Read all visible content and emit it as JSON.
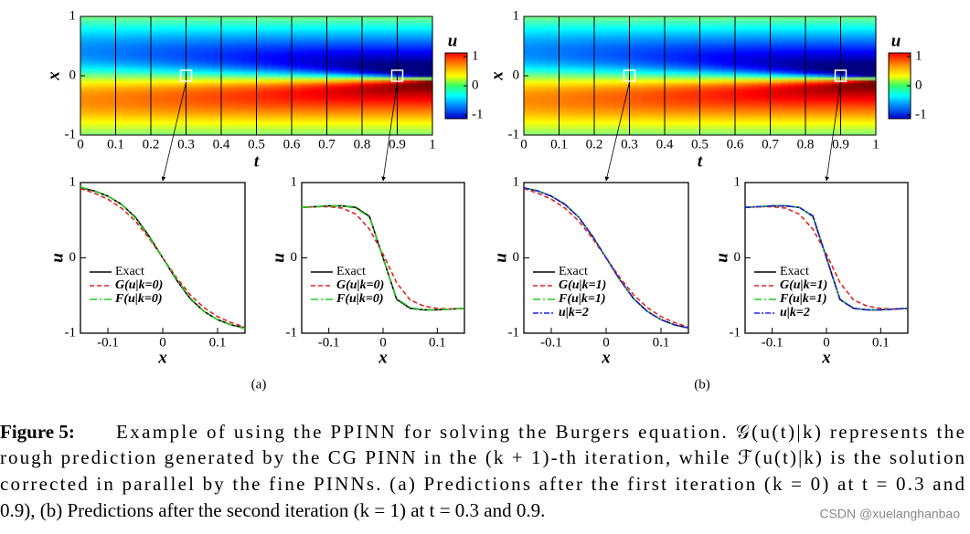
{
  "figures": [
    {
      "heatmap": {
        "type": "heatmap",
        "xlabel": "t",
        "ylabel": "x",
        "xlim": [
          0,
          1
        ],
        "ylim": [
          -1,
          1
        ],
        "xticks": [
          0,
          0.1,
          0.2,
          0.3,
          0.4,
          0.5,
          0.6,
          0.7,
          0.8,
          0.9,
          1
        ],
        "yticks": [
          -1,
          0,
          1
        ],
        "colorbar": {
          "title": "u",
          "clim": [
            -1,
            1
          ],
          "ticks": [
            -1,
            0,
            1
          ]
        }
      },
      "plots": [
        {
          "type": "line",
          "t": 0.3,
          "xlabel": "x",
          "ylabel": "u",
          "xlim": [
            -0.15,
            0.15
          ],
          "ylim": [
            -1,
            1
          ],
          "xticks": [
            -0.1,
            0,
            0.1
          ],
          "yticks": [
            -1,
            0,
            1
          ],
          "x": [
            -0.15,
            -0.125,
            -0.1,
            -0.075,
            -0.05,
            -0.025,
            0,
            0.025,
            0.05,
            0.075,
            0.1,
            0.125,
            0.15
          ],
          "series": [
            {
              "name": "Exact",
              "color": "#000000",
              "values": [
                0.93,
                0.89,
                0.82,
                0.71,
                0.54,
                0.29,
                0,
                -0.29,
                -0.54,
                -0.71,
                -0.82,
                -0.89,
                -0.93
              ]
            },
            {
              "name": "G(u|k=0)",
              "color": "#e52222",
              "values": [
                0.92,
                0.86,
                0.78,
                0.66,
                0.49,
                0.26,
                0,
                -0.26,
                -0.49,
                -0.66,
                -0.78,
                -0.86,
                -0.92
              ]
            },
            {
              "name": "F(u|k=0)",
              "color": "#22cc22",
              "values": [
                0.94,
                0.89,
                0.82,
                0.71,
                0.53,
                0.28,
                0,
                -0.28,
                -0.53,
                -0.71,
                -0.82,
                -0.89,
                -0.94
              ]
            }
          ]
        },
        {
          "type": "line",
          "t": 0.9,
          "xlabel": "x",
          "ylabel": "u",
          "xlim": [
            -0.15,
            0.15
          ],
          "ylim": [
            -1,
            1
          ],
          "xticks": [
            -0.1,
            0,
            0.1
          ],
          "yticks": [
            -1,
            0,
            1
          ],
          "x": [
            -0.15,
            -0.125,
            -0.1,
            -0.075,
            -0.05,
            -0.025,
            0,
            0.025,
            0.05,
            0.075,
            0.1,
            0.125,
            0.15
          ],
          "series": [
            {
              "name": "Exact",
              "color": "#000000",
              "values": [
                0.67,
                0.68,
                0.69,
                0.69,
                0.67,
                0.55,
                0,
                -0.55,
                -0.67,
                -0.69,
                -0.69,
                -0.68,
                -0.67
              ]
            },
            {
              "name": "G(u|k=0)",
              "color": "#e52222",
              "values": [
                0.67,
                0.68,
                0.68,
                0.66,
                0.58,
                0.38,
                0.05,
                -0.33,
                -0.56,
                -0.64,
                -0.67,
                -0.68,
                -0.67
              ]
            },
            {
              "name": "F(u|k=0)",
              "color": "#22cc22",
              "values": [
                0.67,
                0.68,
                0.69,
                0.69,
                0.66,
                0.54,
                0,
                -0.54,
                -0.66,
                -0.69,
                -0.69,
                -0.68,
                -0.67
              ]
            }
          ]
        }
      ],
      "label": "(a)"
    },
    {
      "heatmap": {
        "type": "heatmap",
        "xlabel": "t",
        "ylabel": "x",
        "xlim": [
          0,
          1
        ],
        "ylim": [
          -1,
          1
        ],
        "xticks": [
          0,
          0.1,
          0.2,
          0.3,
          0.4,
          0.5,
          0.6,
          0.7,
          0.8,
          0.9,
          1
        ],
        "yticks": [
          -1,
          0,
          1
        ],
        "colorbar": {
          "title": "u",
          "clim": [
            -1,
            1
          ],
          "ticks": [
            -1,
            0,
            1
          ]
        }
      },
      "plots": [
        {
          "type": "line",
          "t": 0.3,
          "xlabel": "x",
          "ylabel": "u",
          "xlim": [
            -0.15,
            0.15
          ],
          "ylim": [
            -1,
            1
          ],
          "xticks": [
            -0.1,
            0,
            0.1
          ],
          "yticks": [
            -1,
            0,
            1
          ],
          "x": [
            -0.15,
            -0.125,
            -0.1,
            -0.075,
            -0.05,
            -0.025,
            0,
            0.025,
            0.05,
            0.075,
            0.1,
            0.125,
            0.15
          ],
          "series": [
            {
              "name": "Exact",
              "color": "#000000",
              "values": [
                0.93,
                0.89,
                0.82,
                0.71,
                0.54,
                0.29,
                0,
                -0.29,
                -0.54,
                -0.71,
                -0.82,
                -0.89,
                -0.93
              ]
            },
            {
              "name": "G(u|k=1)",
              "color": "#e52222",
              "values": [
                0.92,
                0.86,
                0.78,
                0.66,
                0.49,
                0.26,
                0,
                -0.26,
                -0.49,
                -0.66,
                -0.78,
                -0.86,
                -0.92
              ]
            },
            {
              "name": "F(u|k=1)",
              "color": "#22cc22",
              "values": [
                0.93,
                0.89,
                0.82,
                0.71,
                0.54,
                0.29,
                0,
                -0.29,
                -0.54,
                -0.71,
                -0.82,
                -0.89,
                -0.93
              ]
            },
            {
              "name": "u|k=2",
              "color": "#2222e5",
              "values": [
                0.93,
                0.89,
                0.82,
                0.71,
                0.54,
                0.29,
                0,
                -0.29,
                -0.54,
                -0.71,
                -0.82,
                -0.89,
                -0.93
              ]
            }
          ]
        },
        {
          "type": "line",
          "t": 0.9,
          "xlabel": "x",
          "ylabel": "u",
          "xlim": [
            -0.15,
            0.15
          ],
          "ylim": [
            -1,
            1
          ],
          "xticks": [
            -0.1,
            0,
            0.1
          ],
          "yticks": [
            -1,
            0,
            1
          ],
          "x": [
            -0.15,
            -0.125,
            -0.1,
            -0.075,
            -0.05,
            -0.025,
            0,
            0.025,
            0.05,
            0.075,
            0.1,
            0.125,
            0.15
          ],
          "series": [
            {
              "name": "Exact",
              "color": "#000000",
              "values": [
                0.67,
                0.68,
                0.69,
                0.69,
                0.67,
                0.55,
                0,
                -0.55,
                -0.67,
                -0.69,
                -0.69,
                -0.68,
                -0.67
              ]
            },
            {
              "name": "G(u|k=1)",
              "color": "#e52222",
              "values": [
                0.67,
                0.68,
                0.68,
                0.66,
                0.58,
                0.38,
                0.05,
                -0.33,
                -0.56,
                -0.64,
                -0.67,
                -0.68,
                -0.67
              ]
            },
            {
              "name": "F(u|k=1)",
              "color": "#22cc22",
              "values": [
                0.67,
                0.68,
                0.69,
                0.69,
                0.67,
                0.55,
                0,
                -0.55,
                -0.67,
                -0.69,
                -0.69,
                -0.68,
                -0.67
              ]
            },
            {
              "name": "u|k=2",
              "color": "#2222e5",
              "values": [
                0.67,
                0.68,
                0.69,
                0.69,
                0.67,
                0.56,
                0,
                -0.56,
                -0.67,
                -0.69,
                -0.69,
                -0.68,
                -0.67
              ]
            }
          ]
        }
      ],
      "label": "(b)"
    }
  ],
  "caption": {
    "label": "Figure 5:",
    "lines": [
      "Example of using the PPINN for solving the Burgers equation. 𝒢(u(t)|k) represents the",
      "rough prediction generated by the CG PINN in the (k + 1)-th iteration, while ℱ(u(t)|k) is the solution",
      "corrected in parallel by the fine PINNs. (a) Predictions after the first iteration (k = 0) at t = 0.3 and",
      "0.9), (b) Predictions after the second iteration (k = 1) at t = 0.3 and 0.9."
    ]
  },
  "watermark": "CSDN @xuelanghanbao"
}
